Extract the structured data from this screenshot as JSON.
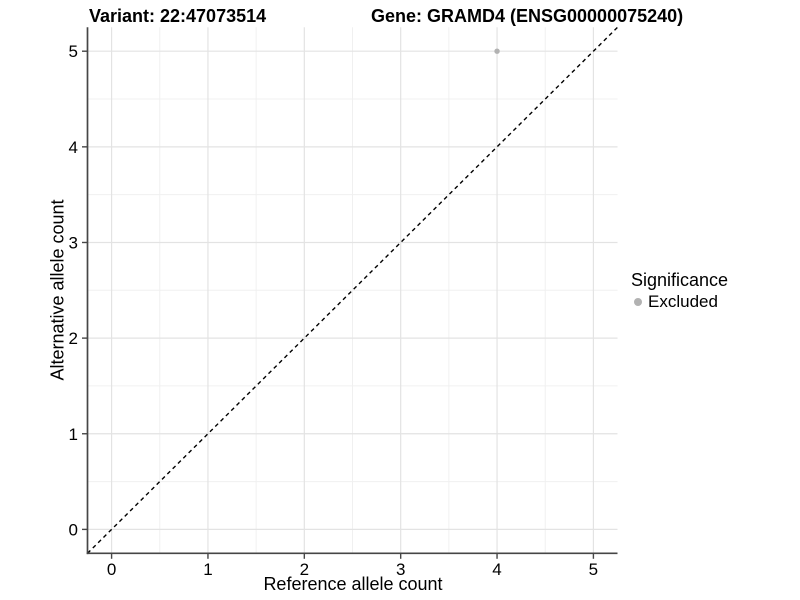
{
  "chart_data": {
    "type": "scatter",
    "title_left": "Variant: 22:47073514",
    "title_right": "Gene: GRAMD4 (ENSG00000075240)",
    "xlabel": "Reference allele count",
    "ylabel": "Alternative allele count",
    "xlim": [
      -0.25,
      5.25
    ],
    "ylim": [
      -0.25,
      5.25
    ],
    "x_ticks": [
      0,
      1,
      2,
      3,
      4,
      5
    ],
    "y_ticks": [
      0,
      1,
      2,
      3,
      4,
      5
    ],
    "x_minor_ticks": [
      0.5,
      1.5,
      2.5,
      3.5,
      4.5
    ],
    "y_minor_ticks": [
      0.5,
      1.5,
      2.5,
      3.5,
      4.5
    ],
    "grid": true,
    "identity_line": {
      "style": "dashed",
      "x1": -0.25,
      "y1": -0.25,
      "x2": 5.25,
      "y2": 5.25
    },
    "points": [
      {
        "x": 4,
        "y": 5,
        "significance": "Excluded"
      }
    ],
    "legend": {
      "title": "Significance",
      "position": "right",
      "entries": [
        {
          "label": "Excluded",
          "marker": "point-icon",
          "color": "#b2b2b2"
        }
      ]
    },
    "colors": {
      "point": "#b2b2b2",
      "grid_major": "#e3e3e3",
      "grid_minor": "#f0f0f0",
      "axis_line": "#464646",
      "tick_mark": "#464646",
      "identity_line": "#000000",
      "background": "#ffffff",
      "text": "#000000"
    }
  }
}
